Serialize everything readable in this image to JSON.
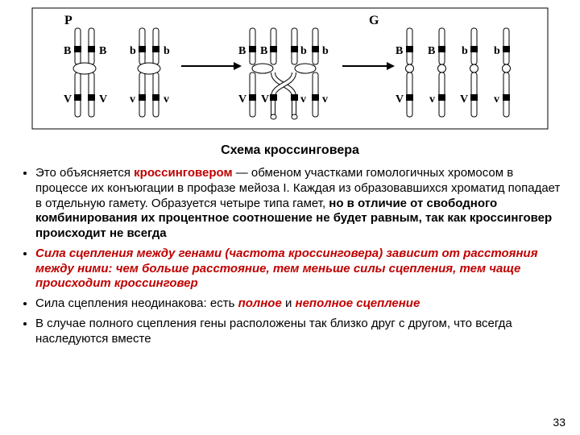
{
  "diagram": {
    "stage_labels": {
      "P": "P",
      "G": "G"
    },
    "alleles": {
      "B": "B",
      "b": "b",
      "V": "V",
      "v": "v"
    },
    "colors": {
      "stroke": "#000000",
      "fill": "#ffffff",
      "red": "#c00000",
      "text": "#000000"
    },
    "chromatid": {
      "width": 7,
      "height": 110,
      "band_height": 8
    },
    "arrow": {
      "length": 70,
      "stroke_width": 2
    }
  },
  "title": "Схема кроссинговера",
  "bullets": [
    {
      "segments": [
        {
          "text": "Это объясняется ",
          "bold": false,
          "red": false,
          "italic": false
        },
        {
          "text": "кроссинговером",
          "bold": true,
          "red": true,
          "italic": false
        },
        {
          "text": " — обменом участками гомологичных хромосом в процессе их конъюгации в профазе мейоза I. Каждая из образовавшихся хроматид попадает в отдельную гамету. Образуется четыре типа гамет, ",
          "bold": false,
          "red": false,
          "italic": false
        },
        {
          "text": "но в отличие от свободного комбинирования их процентное соотношение не будет равным, так как кроссинговер происходит не всегда",
          "bold": true,
          "red": false,
          "italic": false
        }
      ]
    },
    {
      "segments": [
        {
          "text": "Сила сцепления между генами (частота кроссинговера) зависит от расстояния между ними: чем больше расстояние, тем меньше силы сцепления, тем чаще происходит кроссинговер",
          "bold": true,
          "red": true,
          "italic": true
        }
      ]
    },
    {
      "segments": [
        {
          "text": "Сила сцепления неодинакова: есть ",
          "bold": false,
          "red": false,
          "italic": false
        },
        {
          "text": "полное",
          "bold": true,
          "red": true,
          "italic": true
        },
        {
          "text": " и ",
          "bold": false,
          "red": false,
          "italic": false
        },
        {
          "text": "неполное сцепление",
          "bold": true,
          "red": true,
          "italic": true
        }
      ]
    },
    {
      "segments": [
        {
          "text": "В случае полного сцепления гены расположены так близко друг с другом, что всегда наследуются вместе",
          "bold": false,
          "red": false,
          "italic": false
        }
      ]
    }
  ],
  "page_number": "33"
}
